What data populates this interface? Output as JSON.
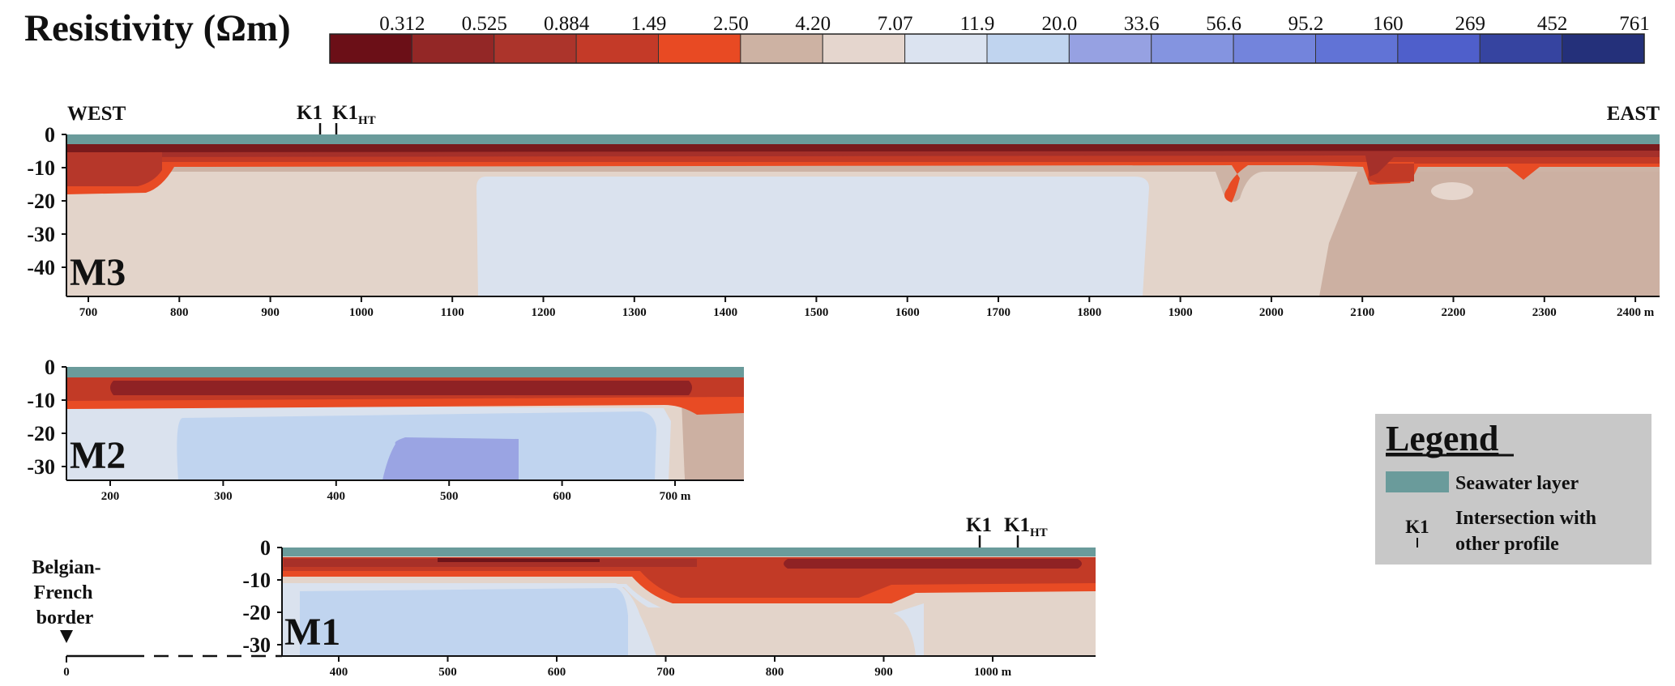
{
  "colorbar": {
    "title": "Resistivity (Ωm)",
    "ticks": [
      "0.312",
      "0.525",
      "0.884",
      "1.49",
      "2.50",
      "4.20",
      "7.07",
      "11.9",
      "20.0",
      "33.6",
      "56.6",
      "95.2",
      "160",
      "269",
      "452",
      "761"
    ],
    "colors": [
      "#6b0f17",
      "#932726",
      "#ac342b",
      "#c43a28",
      "#e84a23",
      "#cdb2a3",
      "#e5d6ce",
      "#dbe3f0",
      "#c0d4ef",
      "#96a1e2",
      "#8494e0",
      "#7384dc",
      "#6173d6",
      "#4f5fcb",
      "#3644a0",
      "#24307a"
    ]
  },
  "legend": {
    "title": "Legend",
    "seawater_label": "Seawater layer",
    "marker_symbol": "K1",
    "intersection_label_line1": "Intersection with",
    "intersection_label_line2": "other profile"
  },
  "profiles": {
    "m3": {
      "name": "M3",
      "west_label": "WEST",
      "east_label": "EAST",
      "y_ticks": [
        "0",
        "-10",
        "-20",
        "-30",
        "-40"
      ],
      "x_ticks": [
        "700",
        "800",
        "900",
        "1000",
        "1100",
        "1200",
        "1300",
        "1400",
        "1500",
        "1600",
        "1700",
        "1800",
        "1900",
        "2000",
        "2100",
        "2200",
        "2300",
        "2400 m"
      ],
      "marker_k1": "K1",
      "marker_k1ht_base": "K1",
      "marker_k1ht_sub": "HT"
    },
    "m2": {
      "name": "M2",
      "y_ticks": [
        "0",
        "-10",
        "-20",
        "-30"
      ],
      "x_ticks": [
        "200",
        "300",
        "400",
        "500",
        "600",
        "700 m"
      ]
    },
    "m1": {
      "name": "M1",
      "y_ticks": [
        "0",
        "-10",
        "-20",
        "-30"
      ],
      "x_ticks": [
        "0",
        "400",
        "500",
        "600",
        "700",
        "800",
        "900",
        "1000 m"
      ],
      "marker_k1": "K1",
      "marker_k1ht_base": "K1",
      "marker_k1ht_sub": "HT",
      "border_line1": "Belgian-",
      "border_line2": "French",
      "border_line3": "border"
    }
  }
}
